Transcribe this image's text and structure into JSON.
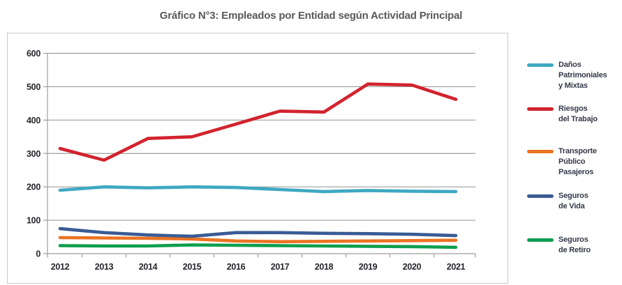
{
  "title": "Gráfico N°3: Empleados por Entidad según Actividad Principal",
  "colors": {
    "title": "#58595b",
    "axis_labels": "#26272e",
    "grid": "#9d9d9d",
    "legend_text": "#343949",
    "frame_border": "#c9c9c9"
  },
  "chart_data": {
    "type": "line",
    "title": "Gráfico N°3: Empleados por Entidad según Actividad Principal",
    "categories": [
      "2012",
      "2013",
      "2014",
      "2015",
      "2016",
      "2017",
      "2018",
      "2019",
      "2020",
      "2021"
    ],
    "yticks": [
      0,
      100,
      200,
      300,
      400,
      500,
      600
    ],
    "ylim": [
      0,
      600
    ],
    "xlabel": "",
    "ylabel": "",
    "grid": true,
    "legend_position": "right",
    "series": [
      {
        "name": "Daños Patrimoniales y Mixtas",
        "legend_lines": [
          "Daños",
          "Patrimoniales",
          "y Mixtas"
        ],
        "color": "#3FA8C2",
        "values": [
          190,
          200,
          197,
          200,
          198,
          192,
          186,
          189,
          187,
          186
        ]
      },
      {
        "name": "Riesgos del Trabajo",
        "legend_lines": [
          "Riesgos",
          "del Trabajo"
        ],
        "color": "#D2232E",
        "values": [
          315,
          280,
          345,
          350,
          388,
          427,
          424,
          508,
          505,
          462
        ]
      },
      {
        "name": "Transporte Público Pasajeros",
        "legend_lines": [
          "Transporte",
          "Público",
          "Pasajeros"
        ],
        "color": "#EB7323",
        "values": [
          48,
          47,
          46,
          44,
          38,
          36,
          37,
          38,
          39,
          40
        ]
      },
      {
        "name": "Seguros de Vida",
        "legend_lines": [
          "Seguros",
          "de Vida"
        ],
        "color": "#3A5B94",
        "values": [
          75,
          63,
          56,
          52,
          63,
          63,
          61,
          60,
          58,
          54
        ]
      },
      {
        "name": "Seguros de Retiro",
        "legend_lines": [
          "Seguros",
          "de Retiro"
        ],
        "color": "#0C9E4D",
        "values": [
          24,
          23,
          23,
          26,
          25,
          24,
          23,
          22,
          21,
          19
        ]
      }
    ]
  }
}
